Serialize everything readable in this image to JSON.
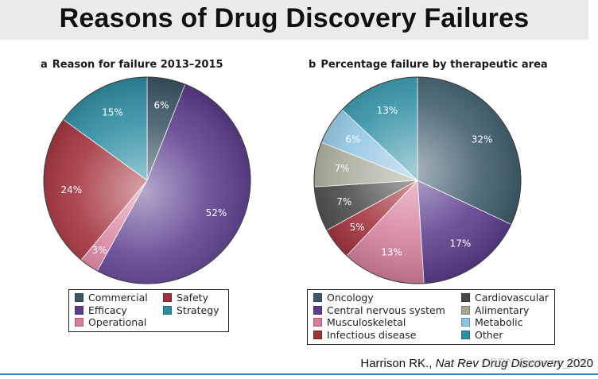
{
  "slide": {
    "title": "Reasons of Drug Discovery Failures",
    "citation_author": "Harrison RK.,",
    "citation_journal": "Nat Rev Drug Discovery",
    "citation_year": "2020",
    "watermark": "CSDN @ocean_520"
  },
  "chart_data": [
    {
      "type": "pie",
      "panel": "a",
      "title": "Reason for failure 2013–2015",
      "categories": [
        "Commercial",
        "Efficacy",
        "Operational",
        "Safety",
        "Strategy"
      ],
      "values": [
        6,
        52,
        3,
        24,
        15
      ],
      "labels": [
        "6%",
        "52%",
        "3%",
        "24%",
        "15%"
      ],
      "colors": [
        "#3d5666",
        "#5b3d8c",
        "#d67f9c",
        "#a2303b",
        "#2e8ea3"
      ],
      "legend": {
        "placement": "bottom",
        "columns": [
          [
            "Commercial",
            "Efficacy",
            "Operational"
          ],
          [
            "Safety",
            "Strategy"
          ]
        ]
      }
    },
    {
      "type": "pie",
      "panel": "b",
      "title": "Percentage failure by therapeutic area",
      "categories": [
        "Oncology",
        "Central nervous system",
        "Musculoskeletal",
        "Infectious disease",
        "Cardiovascular",
        "Alimentary",
        "Metabolic",
        "Other"
      ],
      "values": [
        32,
        17,
        13,
        5,
        7,
        7,
        6,
        13
      ],
      "labels": [
        "32%",
        "17%",
        "13%",
        "5%",
        "7%",
        "7%",
        "6%",
        "13%"
      ],
      "colors": [
        "#3d5a6a",
        "#5b3d8c",
        "#d67f9c",
        "#a2303b",
        "#4a4a4a",
        "#a8a899",
        "#8ec3e2",
        "#2e8ea3"
      ],
      "legend": {
        "placement": "bottom",
        "columns": [
          [
            "Oncology",
            "Central nervous system",
            "Musculoskeletal",
            "Infectious disease"
          ],
          [
            "Cardiovascular",
            "Alimentary",
            "Metabolic",
            "Other"
          ]
        ]
      }
    }
  ]
}
